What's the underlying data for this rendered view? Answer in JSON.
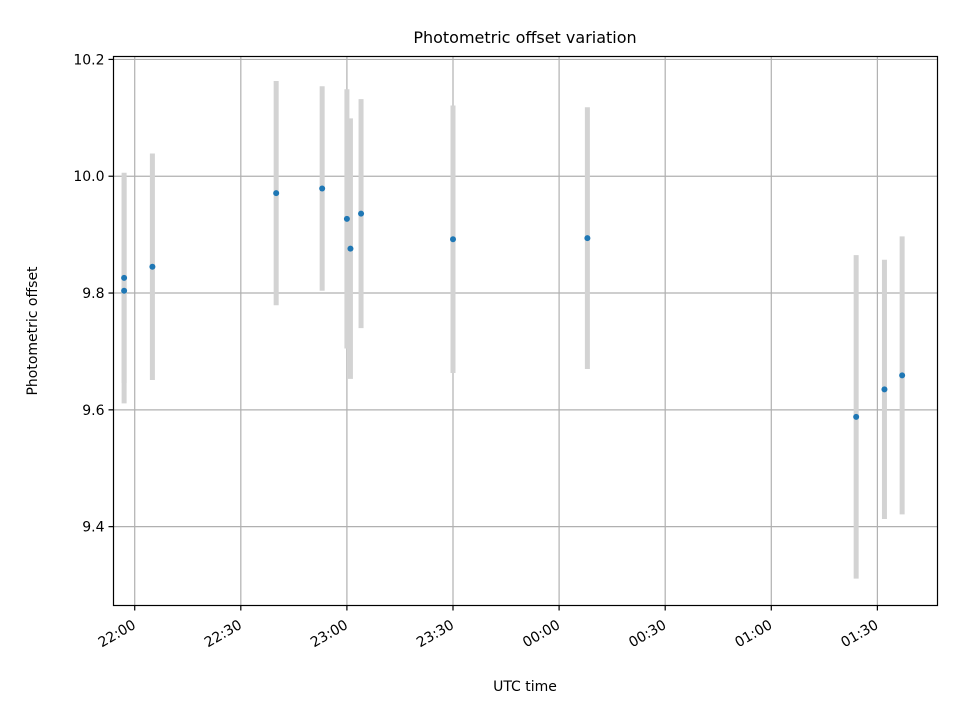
{
  "chart_data": {
    "type": "scatter",
    "title": "Photometric offset variation",
    "xlabel": "UTC time",
    "ylabel": "Photometric offset",
    "x_unit": "UTC time (hh:mm)",
    "xlim": [
      "21:54",
      "01:47"
    ],
    "ylim": [
      9.265,
      10.205
    ],
    "grid": true,
    "x_ticks": [
      "22:00",
      "22:30",
      "23:00",
      "23:30",
      "00:00",
      "00:30",
      "01:00",
      "01:30"
    ],
    "y_ticks": [
      "9.4",
      "9.6",
      "9.8",
      "10.0",
      "10.2"
    ],
    "marker_color": "#1f77b4",
    "errorbar_color": "#d3d3d3",
    "series": [
      {
        "points": [
          {
            "x": "21:57",
            "y": 9.826,
            "err": 0.18
          },
          {
            "x": "21:57",
            "y": 9.804,
            "err": 0.193
          },
          {
            "x": "22:05",
            "y": 9.845,
            "err": 0.194
          },
          {
            "x": "22:40",
            "y": 9.971,
            "err": 0.192
          },
          {
            "x": "22:53",
            "y": 9.979,
            "err": 0.175
          },
          {
            "x": "23:00",
            "y": 9.927,
            "err": 0.222
          },
          {
            "x": "23:01",
            "y": 9.876,
            "err": 0.223
          },
          {
            "x": "23:04",
            "y": 9.936,
            "err": 0.196
          },
          {
            "x": "23:30",
            "y": 9.892,
            "err": 0.229
          },
          {
            "x": "00:08",
            "y": 9.894,
            "err": 0.224
          },
          {
            "x": "01:24",
            "y": 9.588,
            "err": 0.277
          },
          {
            "x": "01:32",
            "y": 9.635,
            "err": 0.222
          },
          {
            "x": "01:37",
            "y": 9.659,
            "err": 0.238
          }
        ]
      }
    ]
  }
}
